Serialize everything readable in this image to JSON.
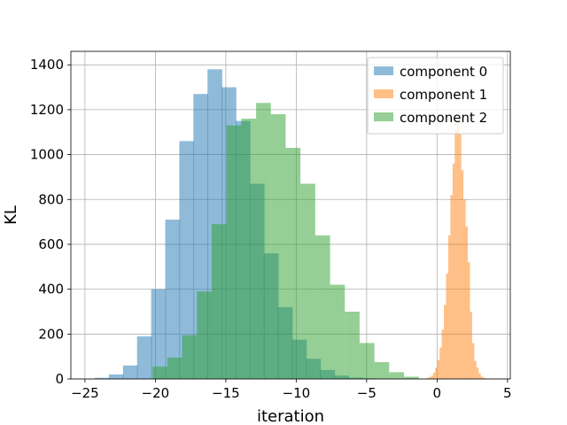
{
  "chart_data": {
    "type": "bar",
    "xlabel": "iteration",
    "ylabel": "KL",
    "xlim": [
      -26,
      5.2
    ],
    "ylim": [
      0,
      1460
    ],
    "xticks": [
      -25,
      -20,
      -15,
      -10,
      -5,
      0,
      5
    ],
    "yticks": [
      0,
      200,
      400,
      600,
      800,
      1000,
      1200,
      1400
    ],
    "grid": true,
    "legend_position": "top-right",
    "series": [
      {
        "name": "component 0",
        "color": "#1f77b4",
        "alpha": 0.5,
        "bin_width": 1.05,
        "bins": [
          {
            "x0": -24.3,
            "count": 5
          },
          {
            "x0": -23.3,
            "count": 20
          },
          {
            "x0": -22.3,
            "count": 60
          },
          {
            "x0": -21.3,
            "count": 190
          },
          {
            "x0": -20.3,
            "count": 400
          },
          {
            "x0": -19.3,
            "count": 710
          },
          {
            "x0": -18.3,
            "count": 1060
          },
          {
            "x0": -17.3,
            "count": 1270
          },
          {
            "x0": -16.3,
            "count": 1380
          },
          {
            "x0": -15.3,
            "count": 1300
          },
          {
            "x0": -14.3,
            "count": 1150
          },
          {
            "x0": -13.3,
            "count": 870
          },
          {
            "x0": -12.3,
            "count": 560
          },
          {
            "x0": -11.3,
            "count": 320
          },
          {
            "x0": -10.3,
            "count": 175
          },
          {
            "x0": -9.3,
            "count": 90
          },
          {
            "x0": -8.3,
            "count": 40
          },
          {
            "x0": -7.3,
            "count": 15
          },
          {
            "x0": -6.3,
            "count": 6
          },
          {
            "x0": -5.3,
            "count": 3
          },
          {
            "x0": -4.3,
            "count": 2
          }
        ]
      },
      {
        "name": "component 1",
        "color": "#ff7f0e",
        "alpha": 0.5,
        "bin_width": 0.154,
        "bins": [
          {
            "x0": -0.9,
            "count": 2
          },
          {
            "x0": -0.746,
            "count": 5
          },
          {
            "x0": -0.592,
            "count": 8
          },
          {
            "x0": -0.438,
            "count": 15
          },
          {
            "x0": -0.284,
            "count": 28
          },
          {
            "x0": -0.13,
            "count": 50
          },
          {
            "x0": 0.024,
            "count": 85
          },
          {
            "x0": 0.178,
            "count": 140
          },
          {
            "x0": 0.332,
            "count": 220
          },
          {
            "x0": 0.486,
            "count": 330
          },
          {
            "x0": 0.64,
            "count": 470
          },
          {
            "x0": 0.794,
            "count": 640
          },
          {
            "x0": 0.948,
            "count": 820
          },
          {
            "x0": 1.102,
            "count": 960
          },
          {
            "x0": 1.256,
            "count": 1110
          },
          {
            "x0": 1.41,
            "count": 1150
          },
          {
            "x0": 1.564,
            "count": 1090
          },
          {
            "x0": 1.718,
            "count": 930
          },
          {
            "x0": 1.872,
            "count": 800
          },
          {
            "x0": 2.026,
            "count": 680
          },
          {
            "x0": 2.18,
            "count": 520
          },
          {
            "x0": 2.334,
            "count": 300
          },
          {
            "x0": 2.488,
            "count": 160
          },
          {
            "x0": 2.642,
            "count": 80
          },
          {
            "x0": 2.796,
            "count": 50
          },
          {
            "x0": 2.95,
            "count": 25
          },
          {
            "x0": 3.104,
            "count": 10
          },
          {
            "x0": 3.258,
            "count": 5
          },
          {
            "x0": 3.412,
            "count": 2
          }
        ]
      },
      {
        "name": "component 2",
        "color": "#2ca02c",
        "alpha": 0.5,
        "bin_width": 1.05,
        "bins": [
          {
            "x0": -20.2,
            "count": 55
          },
          {
            "x0": -19.15,
            "count": 95
          },
          {
            "x0": -18.1,
            "count": 195
          },
          {
            "x0": -17.05,
            "count": 390
          },
          {
            "x0": -16.0,
            "count": 690
          },
          {
            "x0": -14.95,
            "count": 1130
          },
          {
            "x0": -13.9,
            "count": 1160
          },
          {
            "x0": -12.85,
            "count": 1230
          },
          {
            "x0": -11.8,
            "count": 1180
          },
          {
            "x0": -10.75,
            "count": 1030
          },
          {
            "x0": -9.7,
            "count": 870
          },
          {
            "x0": -8.65,
            "count": 640
          },
          {
            "x0": -7.6,
            "count": 420
          },
          {
            "x0": -6.55,
            "count": 300
          },
          {
            "x0": -5.5,
            "count": 160
          },
          {
            "x0": -4.45,
            "count": 75
          },
          {
            "x0": -3.4,
            "count": 30
          },
          {
            "x0": -2.35,
            "count": 10
          }
        ]
      }
    ]
  }
}
